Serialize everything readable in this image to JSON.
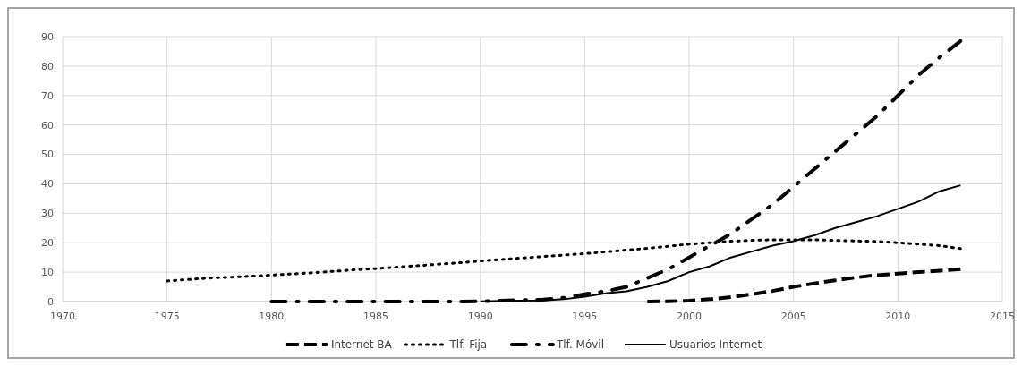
{
  "chart_data": {
    "type": "line",
    "xlim": [
      1970,
      2015
    ],
    "xticks": [
      1970,
      1975,
      1980,
      1985,
      1990,
      1995,
      2000,
      2005,
      2010,
      2015
    ],
    "ylim": [
      0,
      90
    ],
    "yticks": [
      0,
      10,
      20,
      30,
      40,
      50,
      60,
      70,
      80,
      90
    ],
    "grid": true,
    "legend": "bottom",
    "series": [
      {
        "name": "Internet BA",
        "color": "#000000",
        "line_style": "dashed",
        "x": [
          1998,
          1999,
          2000,
          2001,
          2002,
          2003,
          2004,
          2005,
          2006,
          2007,
          2008,
          2009,
          2010,
          2011,
          2012,
          2013
        ],
        "values": [
          0,
          0.1,
          0.3,
          0.8,
          1.5,
          2.5,
          3.6,
          5,
          6.2,
          7.2,
          8.2,
          9,
          9.5,
          10,
          10.5,
          11
        ]
      },
      {
        "name": "Tlf. Fija",
        "color": "#000000",
        "line_style": "dotted",
        "x": [
          1975,
          1976,
          1977,
          1978,
          1979,
          1980,
          1981,
          1982,
          1983,
          1984,
          1985,
          1986,
          1987,
          1988,
          1989,
          1990,
          1991,
          1992,
          1993,
          1994,
          1995,
          1996,
          1997,
          1998,
          1999,
          2000,
          2001,
          2002,
          2003,
          2004,
          2005,
          2006,
          2007,
          2008,
          2009,
          2010,
          2011,
          2012,
          2013
        ],
        "values": [
          7,
          7.5,
          8,
          8.3,
          8.6,
          9,
          9.4,
          9.8,
          10.3,
          10.8,
          11.2,
          11.7,
          12.2,
          12.7,
          13.2,
          13.8,
          14.3,
          14.8,
          15.3,
          15.8,
          16.3,
          16.9,
          17.5,
          18.1,
          18.8,
          19.5,
          20,
          20.5,
          20.8,
          21,
          21,
          21,
          20.8,
          20.6,
          20.4,
          20,
          19.5,
          19,
          18
        ]
      },
      {
        "name": "Tlf. Móvil",
        "color": "#000000",
        "line_style": "dashdot",
        "x": [
          1980,
          1981,
          1982,
          1983,
          1984,
          1985,
          1986,
          1987,
          1988,
          1989,
          1990,
          1991,
          1992,
          1993,
          1994,
          1995,
          1996,
          1997,
          1998,
          1999,
          2000,
          2001,
          2002,
          2003,
          2004,
          2005,
          2006,
          2007,
          2008,
          2009,
          2010,
          2011,
          2012,
          2013
        ],
        "values": [
          0,
          0,
          0,
          0,
          0,
          0,
          0,
          0,
          0,
          0,
          0.1,
          0.3,
          0.5,
          0.7,
          1.3,
          2.5,
          3.5,
          5,
          8,
          11,
          15,
          19,
          23,
          28,
          33,
          39,
          45,
          51,
          57,
          63,
          70,
          77,
          83,
          88.5
        ]
      },
      {
        "name": "Usuarios Internet",
        "color": "#000000",
        "line_style": "solid",
        "x": [
          1990,
          1991,
          1992,
          1993,
          1994,
          1995,
          1996,
          1997,
          1998,
          1999,
          2000,
          2001,
          2002,
          2003,
          2004,
          2005,
          2006,
          2007,
          2008,
          2009,
          2010,
          2011,
          2012,
          2013
        ],
        "values": [
          0.1,
          0.2,
          0.3,
          0.4,
          0.8,
          1.7,
          2.8,
          3.5,
          5,
          7,
          10,
          12,
          15,
          17,
          19,
          20.5,
          22.5,
          25,
          27,
          29,
          31.5,
          34,
          37.5,
          39.5
        ]
      }
    ]
  }
}
